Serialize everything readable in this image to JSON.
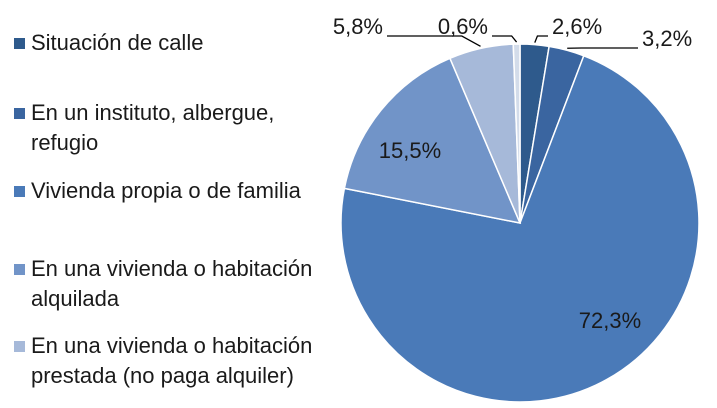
{
  "chart_data": {
    "type": "pie",
    "categories": [
      "Situación de calle",
      "En un instituto, albergue, refugio",
      "Vivienda propia o de familia",
      "En una vivienda o habitación alquilada",
      "En una vivienda o habitación prestada (no paga alquiler)",
      null
    ],
    "values": [
      2.6,
      3.2,
      72.3,
      15.5,
      5.8,
      0.6
    ],
    "value_labels": [
      "2,6%",
      "3,2%",
      "72,3%",
      "15,5%",
      "5,8%",
      "0,6%"
    ],
    "colors": [
      "#2e5a8c",
      "#3a65a0",
      "#4a7ab8",
      "#7194c8",
      "#a6b9d9",
      "#d3dcea"
    ]
  }
}
